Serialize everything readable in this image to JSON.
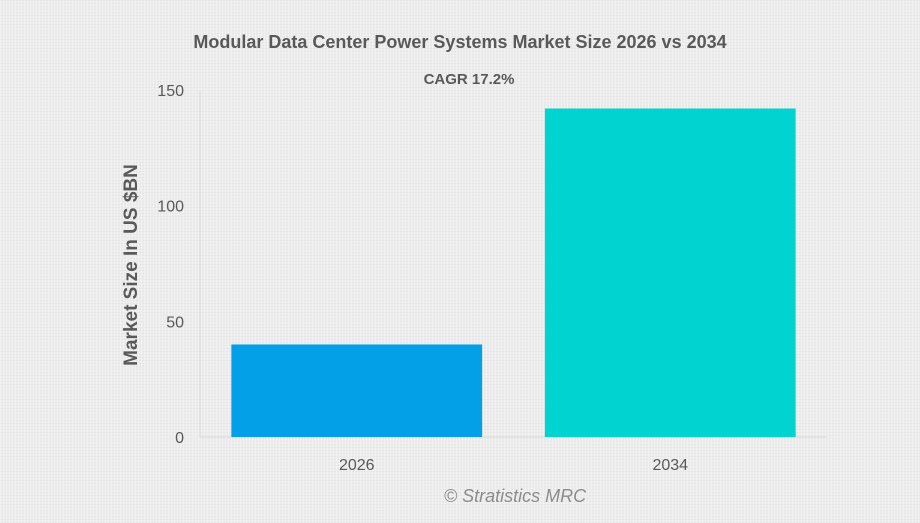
{
  "chart_data": {
    "type": "bar",
    "title": "Modular Data Center Power Systems Market Size 2026 vs 2034",
    "subtitle": "CAGR 17.2%",
    "xlabel": "",
    "ylabel": "Market Size In US $BN",
    "categories": [
      "2026",
      "2034"
    ],
    "values": [
      40,
      142
    ],
    "ylim": [
      0,
      150
    ],
    "yticks": [
      "0",
      "50",
      "100",
      "150"
    ],
    "bar_colors": [
      "#03a0e8",
      "#00d3d0"
    ],
    "grid": false,
    "legend": "none"
  },
  "watermark": "© Stratistics MRC"
}
